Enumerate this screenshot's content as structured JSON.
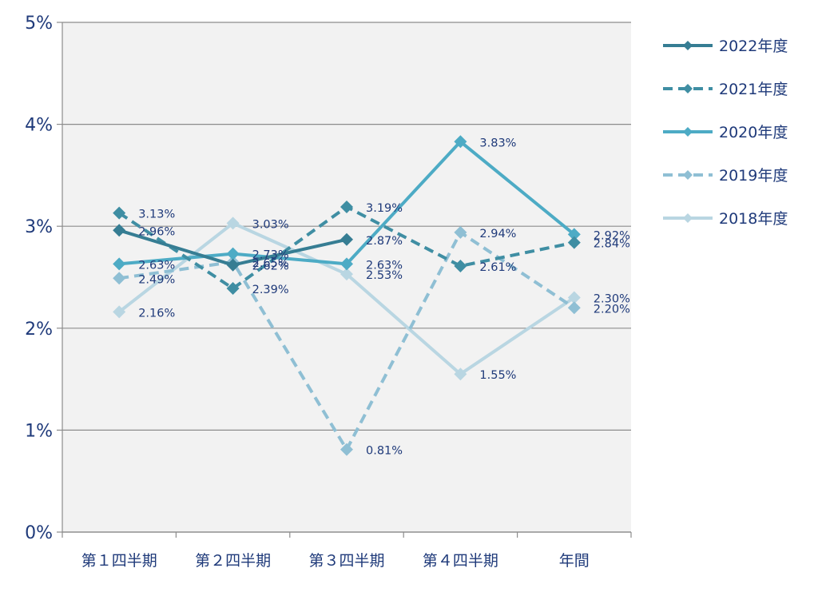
{
  "chart_data": {
    "type": "line",
    "title": "",
    "xlabel": "",
    "ylabel": "",
    "categories": [
      "第１四半期",
      "第２四半期",
      "第３四半期",
      "第４四半期",
      "年間"
    ],
    "yticks": [
      "0%",
      "1%",
      "2%",
      "3%",
      "4%",
      "5%"
    ],
    "ylim": [
      0,
      5
    ],
    "grid": true,
    "legend_position": "right",
    "series": [
      {
        "name": "2022年度",
        "values": [
          2.96,
          2.62,
          2.87,
          null,
          null
        ],
        "labels": [
          "2.96%",
          "",
          "2.87%",
          "",
          ""
        ],
        "color": "#367d93",
        "dashed": false
      },
      {
        "name": "2021年度",
        "values": [
          3.13,
          2.39,
          3.19,
          2.61,
          2.84
        ],
        "labels": [
          "3.13%",
          "2.39%",
          "3.19%",
          "2.61%",
          "2.84%"
        ],
        "color": "#3f8ea3",
        "dashed": true
      },
      {
        "name": "2020年度",
        "values": [
          2.63,
          2.73,
          2.63,
          3.83,
          2.92
        ],
        "labels": [
          "2.63%",
          "2.73%",
          "2.63%",
          "3.83%",
          "2.92%"
        ],
        "color": "#4dabc5",
        "dashed": false
      },
      {
        "name": "2019年度",
        "values": [
          2.49,
          2.65,
          0.81,
          2.94,
          2.2
        ],
        "labels": [
          "2.49%",
          "2.65%",
          "0.81%",
          "2.94%",
          "2.20%"
        ],
        "color": "#8fbfd4",
        "dashed": true
      },
      {
        "name": "2018年度",
        "values": [
          2.16,
          3.03,
          2.53,
          1.55,
          2.3
        ],
        "labels": [
          "2.16%",
          "3.03%",
          "2.53%",
          "1.55%",
          "2.30%"
        ],
        "color": "#b9d6e2",
        "dashed": false
      }
    ],
    "standalone_labels": [
      {
        "category_index": 1,
        "value": 2.62,
        "text": "2.62%"
      }
    ]
  }
}
